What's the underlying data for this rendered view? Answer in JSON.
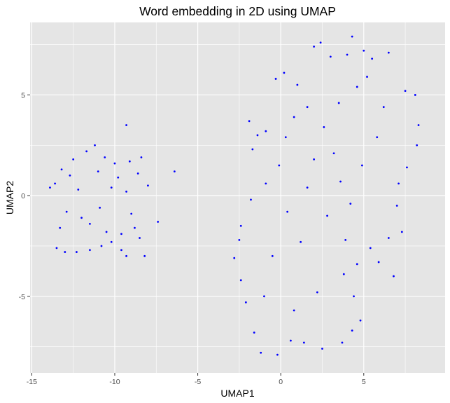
{
  "chart_data": {
    "type": "scatter",
    "title": "Word embedding in 2D using UMAP",
    "xlabel": "UMAP1",
    "ylabel": "UMAP2",
    "xlim": [
      -15.1,
      9.9
    ],
    "ylim": [
      -8.8,
      8.6
    ],
    "x_ticks": [
      -15,
      -10,
      -5,
      0,
      5
    ],
    "y_ticks": [
      -5,
      0,
      5
    ],
    "x_tick_labels": [
      "-15",
      "-10",
      "-5",
      "0",
      "5"
    ],
    "y_tick_labels": [
      "-5",
      "0",
      "5"
    ],
    "grid": true,
    "legend": "none",
    "point_color": "#0000ff",
    "panel_color": "#e5e5e5",
    "grid_color": "#ffffff",
    "series": [
      {
        "values": [
          [
            -13.6,
            0.6
          ],
          [
            -13.2,
            1.3
          ],
          [
            -12.7,
            1.0
          ],
          [
            -12.2,
            0.3
          ],
          [
            -12.9,
            -0.8
          ],
          [
            -13.3,
            -1.6
          ],
          [
            -13.5,
            -2.6
          ],
          [
            -13.0,
            -2.8
          ],
          [
            -12.3,
            -2.8
          ],
          [
            -11.5,
            -2.7
          ],
          [
            -10.8,
            -2.5
          ],
          [
            -10.2,
            -2.3
          ],
          [
            -9.6,
            -2.7
          ],
          [
            -9.3,
            -3.0
          ],
          [
            -11.7,
            2.2
          ],
          [
            -11.2,
            2.5
          ],
          [
            -10.6,
            1.9
          ],
          [
            -10.0,
            1.6
          ],
          [
            -9.8,
            0.9
          ],
          [
            -10.2,
            0.4
          ],
          [
            -10.9,
            -0.6
          ],
          [
            -11.5,
            -1.4
          ],
          [
            -12.0,
            -1.1
          ],
          [
            -9.3,
            0.2
          ],
          [
            -9.0,
            -0.9
          ],
          [
            -8.8,
            -1.6
          ],
          [
            -9.6,
            -1.9
          ],
          [
            -8.5,
            -2.1
          ],
          [
            -8.6,
            1.1
          ],
          [
            -8.4,
            1.9
          ],
          [
            -9.1,
            1.7
          ],
          [
            -9.3,
            3.5
          ],
          [
            -8.0,
            0.5
          ],
          [
            -6.4,
            1.2
          ],
          [
            -7.4,
            -1.3
          ],
          [
            -8.2,
            -3.0
          ],
          [
            -13.9,
            0.4
          ],
          [
            -12.5,
            1.8
          ],
          [
            -11.0,
            1.2
          ],
          [
            -10.5,
            -1.8
          ]
        ]
      },
      {
        "values": [
          [
            0.2,
            6.1
          ],
          [
            1.0,
            5.5
          ],
          [
            2.0,
            7.4
          ],
          [
            2.4,
            7.6
          ],
          [
            3.0,
            6.9
          ],
          [
            4.0,
            7.0
          ],
          [
            4.3,
            7.9
          ],
          [
            5.0,
            7.2
          ],
          [
            5.5,
            6.8
          ],
          [
            6.5,
            7.1
          ],
          [
            7.5,
            5.2
          ],
          [
            8.1,
            5.0
          ],
          [
            8.3,
            3.5
          ],
          [
            8.2,
            2.5
          ],
          [
            7.6,
            1.4
          ],
          [
            7.1,
            0.6
          ],
          [
            7.0,
            -0.5
          ],
          [
            7.3,
            -1.8
          ],
          [
            6.5,
            -2.1
          ],
          [
            5.9,
            -3.3
          ],
          [
            5.4,
            -2.6
          ],
          [
            4.6,
            -3.4
          ],
          [
            3.8,
            -3.9
          ],
          [
            4.4,
            -5.0
          ],
          [
            4.8,
            -6.2
          ],
          [
            4.3,
            -6.7
          ],
          [
            3.7,
            -7.3
          ],
          [
            2.5,
            -7.6
          ],
          [
            1.4,
            -7.3
          ],
          [
            0.6,
            -7.2
          ],
          [
            -0.2,
            -7.9
          ],
          [
            -1.2,
            -7.8
          ],
          [
            -1.6,
            -6.8
          ],
          [
            -2.1,
            -5.3
          ],
          [
            -2.4,
            -4.2
          ],
          [
            -2.8,
            -3.1
          ],
          [
            -2.4,
            -1.5
          ],
          [
            -1.8,
            -0.2
          ],
          [
            -0.9,
            0.6
          ],
          [
            -0.1,
            1.5
          ],
          [
            0.3,
            2.9
          ],
          [
            0.8,
            3.9
          ],
          [
            1.6,
            4.4
          ],
          [
            2.6,
            3.4
          ],
          [
            3.2,
            2.1
          ],
          [
            3.6,
            0.7
          ],
          [
            4.2,
            -0.4
          ],
          [
            4.9,
            1.5
          ],
          [
            5.8,
            2.9
          ],
          [
            6.2,
            4.4
          ],
          [
            4.6,
            5.4
          ],
          [
            3.5,
            4.6
          ],
          [
            -1.9,
            3.7
          ],
          [
            -1.4,
            3.0
          ],
          [
            -1.7,
            2.3
          ],
          [
            -0.9,
            3.2
          ],
          [
            -0.3,
            5.8
          ],
          [
            1.2,
            -2.3
          ],
          [
            2.2,
            -4.8
          ],
          [
            -0.5,
            -3.0
          ],
          [
            0.8,
            -5.7
          ],
          [
            -1.0,
            -5.0
          ],
          [
            2.8,
            -1.0
          ],
          [
            1.6,
            0.4
          ],
          [
            -2.5,
            -2.2
          ],
          [
            6.8,
            -4.0
          ],
          [
            5.2,
            5.9
          ],
          [
            3.9,
            -2.2
          ],
          [
            0.4,
            -0.8
          ],
          [
            2.0,
            1.8
          ]
        ]
      }
    ]
  }
}
